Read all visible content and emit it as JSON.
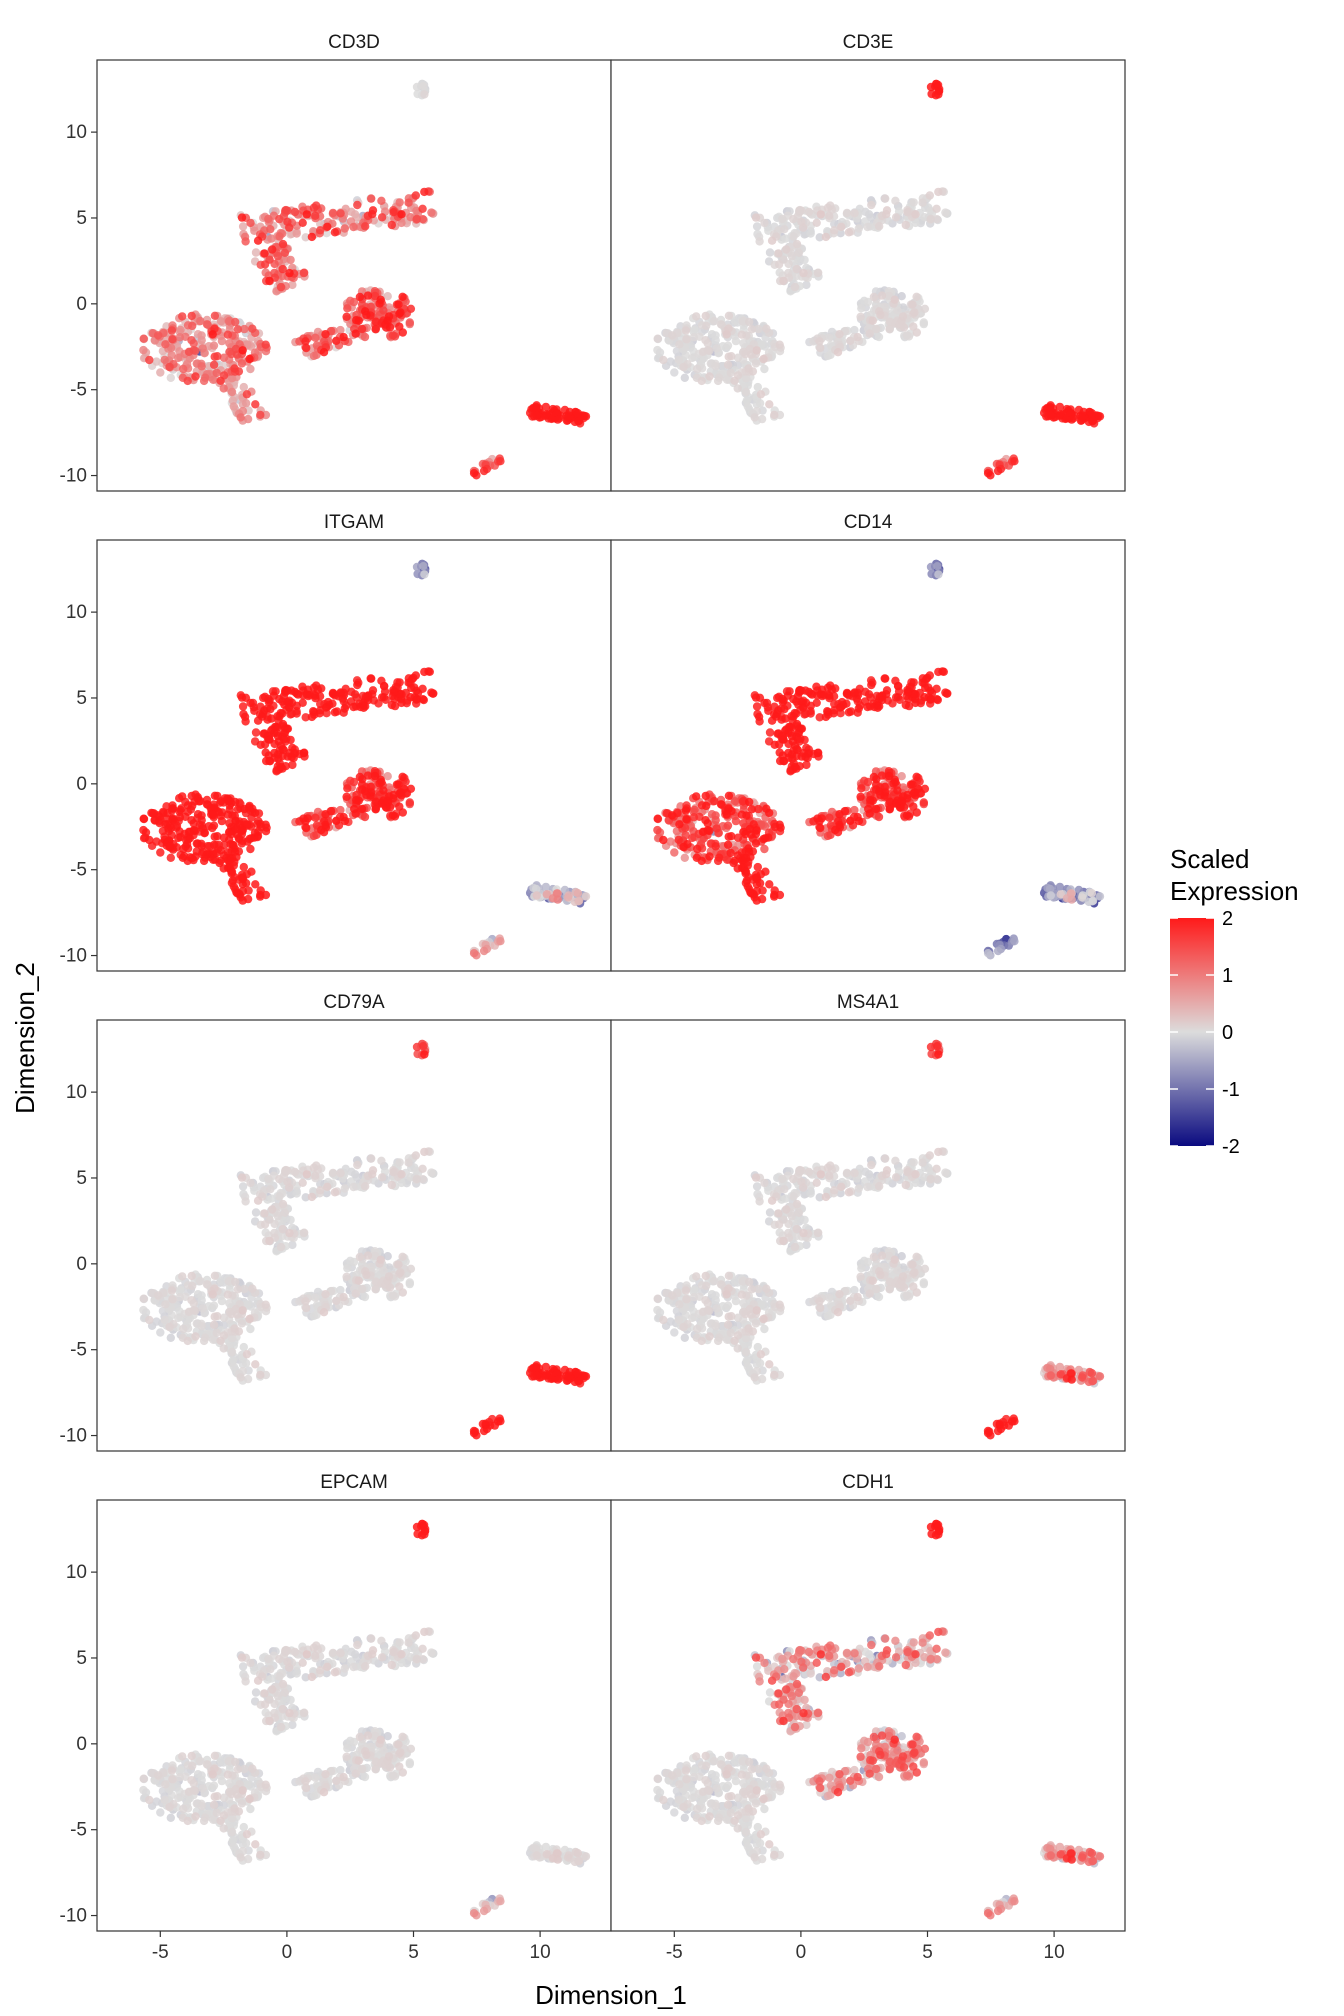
{
  "chart_data": {
    "type": "scatter",
    "facets": [
      "CD3D",
      "CD3E",
      "ITGAM",
      "CD14",
      "CD79A",
      "MS4A1",
      "EPCAM",
      "CDH1"
    ],
    "xlabel": "Dimension_1",
    "ylabel": "Dimension_2",
    "xlim": [
      -7.5,
      12.8
    ],
    "ylim": [
      -10.9,
      14.2
    ],
    "x_ticks": [
      -5,
      0,
      5,
      10
    ],
    "y_ticks": [
      -10,
      -5,
      0,
      5,
      10
    ],
    "x_tick_labels": [
      "-5",
      "0",
      "5",
      "10"
    ],
    "y_tick_labels": [
      "-10",
      "-5",
      "0",
      "5",
      "10"
    ],
    "legend": {
      "title_line1": "Scaled",
      "title_line2": "Expression",
      "values": [
        2,
        1,
        0,
        -1,
        -2
      ],
      "labels": [
        "2",
        "1",
        "0",
        "-1",
        "-2"
      ],
      "colors": {
        "low": "#0a0a80",
        "mid": "#dcdcdc",
        "high": "#ff1a1a"
      },
      "position": "right"
    },
    "clusters": [
      {
        "id": "left-mass",
        "cx": -3.3,
        "cy": -2.6,
        "rx": 2.5,
        "ry": 2.0
      },
      {
        "id": "left-tail",
        "x0": -2.3,
        "y0": -4.2,
        "x1": -1.2,
        "y1": -6.8,
        "w": 0.55
      },
      {
        "id": "top-band",
        "x0": -1.8,
        "y0": 4.3,
        "x1": 5.8,
        "y1": 5.7,
        "w": 0.9
      },
      {
        "id": "top-stem",
        "x0": -0.8,
        "y0": 3.2,
        "x1": 0.2,
        "y1": 1.0,
        "w": 0.8
      },
      {
        "id": "mid-blob",
        "cx": 3.6,
        "cy": -0.6,
        "rx": 1.4,
        "ry": 1.5
      },
      {
        "id": "mid-arm",
        "x0": 3.0,
        "y0": -1.2,
        "x1": 0.5,
        "y1": -2.8,
        "w": 0.6
      },
      {
        "id": "right-strip",
        "x0": 9.6,
        "y0": -6.2,
        "x1": 11.8,
        "y1": -6.7,
        "w": 0.35
      },
      {
        "id": "small-bottom",
        "x0": 7.4,
        "y0": -9.9,
        "x1": 8.4,
        "y1": -9.0,
        "w": 0.2
      },
      {
        "id": "top-island",
        "cx": 5.3,
        "cy": 12.5,
        "rx": 0.2,
        "ry": 0.4
      }
    ],
    "expression_by_facet": {
      "CD3D": {
        "left-mass": 0.8,
        "left-tail": 0.6,
        "top-band": 0.9,
        "top-stem": 1.0,
        "mid-blob": 1.3,
        "mid-arm": 1.1,
        "right-strip": 2.0,
        "small-bottom": 1.5,
        "top-island": 0.0
      },
      "CD3E": {
        "left-mass": 0.0,
        "left-tail": 0.0,
        "top-band": 0.0,
        "top-stem": 0.0,
        "mid-blob": 0.0,
        "mid-arm": 0.0,
        "right-strip": 2.0,
        "small-bottom": 1.6,
        "top-island": 2.0
      },
      "ITGAM": {
        "left-mass": 2.0,
        "left-tail": 2.0,
        "top-band": 2.0,
        "top-stem": 2.0,
        "mid-blob": 1.7,
        "mid-arm": 1.6,
        "right-strip": -0.4,
        "small-bottom": 0.5,
        "top-island": -0.7
      },
      "CD14": {
        "left-mass": 1.5,
        "left-tail": 2.0,
        "top-band": 2.0,
        "top-stem": 2.0,
        "mid-blob": 1.7,
        "mid-arm": 1.6,
        "right-strip": -0.8,
        "small-bottom": -0.8,
        "top-island": -0.8
      },
      "CD79A": {
        "left-mass": 0.0,
        "left-tail": 0.0,
        "top-band": 0.0,
        "top-stem": 0.0,
        "mid-blob": 0.0,
        "mid-arm": 0.0,
        "right-strip": 2.0,
        "small-bottom": 2.0,
        "top-island": 1.5
      },
      "MS4A1": {
        "left-mass": 0.0,
        "left-tail": 0.0,
        "top-band": 0.0,
        "top-stem": 0.0,
        "mid-blob": 0.0,
        "mid-arm": 0.0,
        "right-strip": 0.6,
        "small-bottom": 2.0,
        "top-island": 1.6
      },
      "EPCAM": {
        "left-mass": 0.0,
        "left-tail": 0.0,
        "top-band": 0.0,
        "top-stem": 0.0,
        "mid-blob": 0.0,
        "mid-arm": 0.0,
        "right-strip": 0.0,
        "small-bottom": 0.3,
        "top-island": 2.0
      },
      "CDH1": {
        "left-mass": 0.0,
        "left-tail": 0.0,
        "top-band": 0.4,
        "top-stem": 0.6,
        "mid-blob": 0.7,
        "mid-arm": 0.5,
        "right-strip": 0.5,
        "small-bottom": 0.6,
        "top-island": 2.0
      }
    }
  }
}
